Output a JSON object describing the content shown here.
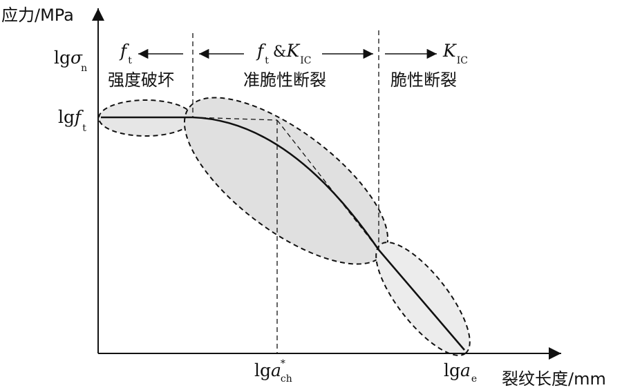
{
  "axes": {
    "y_title": "应力/MPa",
    "x_title": "裂纹长度/mm"
  },
  "y_ticks": {
    "lg_sigma": {
      "prefix": "lg",
      "sym": "σ",
      "sub": "n"
    },
    "lg_ft": {
      "prefix": "lg",
      "sym": "f",
      "sub": "t"
    }
  },
  "x_ticks": {
    "lg_ach": {
      "prefix": "lg",
      "sym": "a",
      "sub": "ch",
      "sup": "*"
    },
    "lg_ae": {
      "prefix": "lg",
      "sym": "a",
      "sub": "e"
    }
  },
  "regions": {
    "strength": {
      "param_sym": "f",
      "param_sub": "t",
      "label": "强度破坏"
    },
    "quasi_brittle": {
      "param1_sym": "f",
      "param1_sub": "t",
      "amp": "&",
      "param2_sym": "K",
      "param2_sub": "IC",
      "label": "准脆性断裂"
    },
    "brittle": {
      "param_sym": "K",
      "param_sub": "IC",
      "label": "脆性断裂"
    }
  }
}
